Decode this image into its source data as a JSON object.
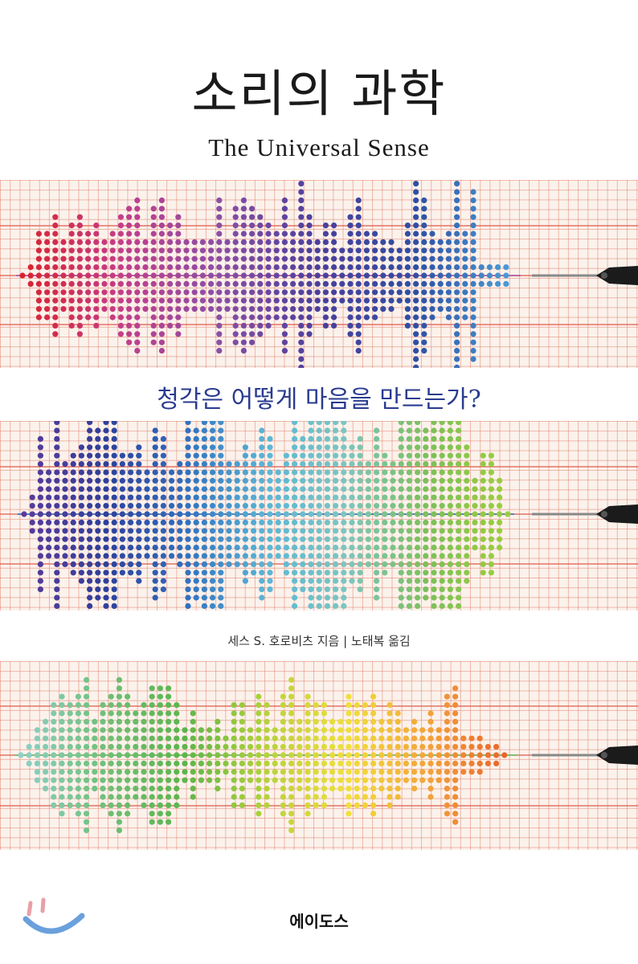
{
  "cover": {
    "title": "소리의 과학",
    "subtitle": "The Universal Sense",
    "tagline": "청각은 어떻게 마음을 만드는가?",
    "author_line": "세스 S. 호로비츠 지음 | 노태복 옮김",
    "publisher": "에이도스"
  },
  "colors": {
    "grid_line": "#e3826e",
    "staff_line": "#e05a4a",
    "tagline": "#2a3b8f",
    "smiley": "#6aa0dc",
    "band1": [
      "#d9232f",
      "#c33e8a",
      "#8a4fa6",
      "#4a3f9c",
      "#2e4fa3",
      "#4aa0d8"
    ],
    "band2": [
      "#5a3a9a",
      "#2e3f9a",
      "#2f6fbf",
      "#5ab6d6",
      "#7cc6c0",
      "#7cbf5a",
      "#9ccf3a"
    ],
    "band3": [
      "#8fd0c8",
      "#6fc07a",
      "#5bb54a",
      "#b4d23a",
      "#f0e03a",
      "#f2a23a",
      "#e8602a"
    ]
  },
  "icons": {
    "stylus": "stylus-needle-icon",
    "smiley": "smiley-face-icon"
  }
}
